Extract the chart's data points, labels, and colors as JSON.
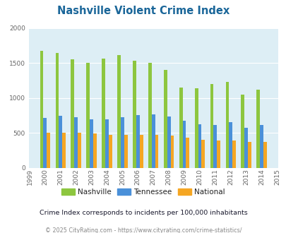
{
  "title": "Nashville Violent Crime Index",
  "title_color": "#1a6699",
  "years": [
    1999,
    2000,
    2001,
    2002,
    2003,
    2004,
    2005,
    2006,
    2007,
    2008,
    2009,
    2010,
    2011,
    2012,
    2013,
    2014,
    2015
  ],
  "nashville": [
    null,
    1670,
    1640,
    1550,
    1505,
    1560,
    1610,
    1530,
    1505,
    1395,
    1150,
    1140,
    1200,
    1230,
    1045,
    1115,
    null
  ],
  "tennessee": [
    null,
    710,
    740,
    720,
    695,
    695,
    720,
    755,
    760,
    730,
    670,
    625,
    615,
    650,
    570,
    610,
    null
  ],
  "national": [
    null,
    505,
    505,
    505,
    495,
    470,
    470,
    470,
    470,
    460,
    430,
    395,
    385,
    385,
    365,
    370,
    null
  ],
  "nashville_color": "#8dc63f",
  "tennessee_color": "#4a90d9",
  "national_color": "#f5a623",
  "plot_bg": "#ddeef5",
  "ylim": [
    0,
    2000
  ],
  "yticks": [
    0,
    500,
    1000,
    1500,
    2000
  ],
  "bar_width": 0.22,
  "subtitle": "Crime Index corresponds to incidents per 100,000 inhabitants",
  "footer": "© 2025 CityRating.com - https://www.cityrating.com/crime-statistics/",
  "legend_labels": [
    "Nashville",
    "Tennessee",
    "National"
  ]
}
